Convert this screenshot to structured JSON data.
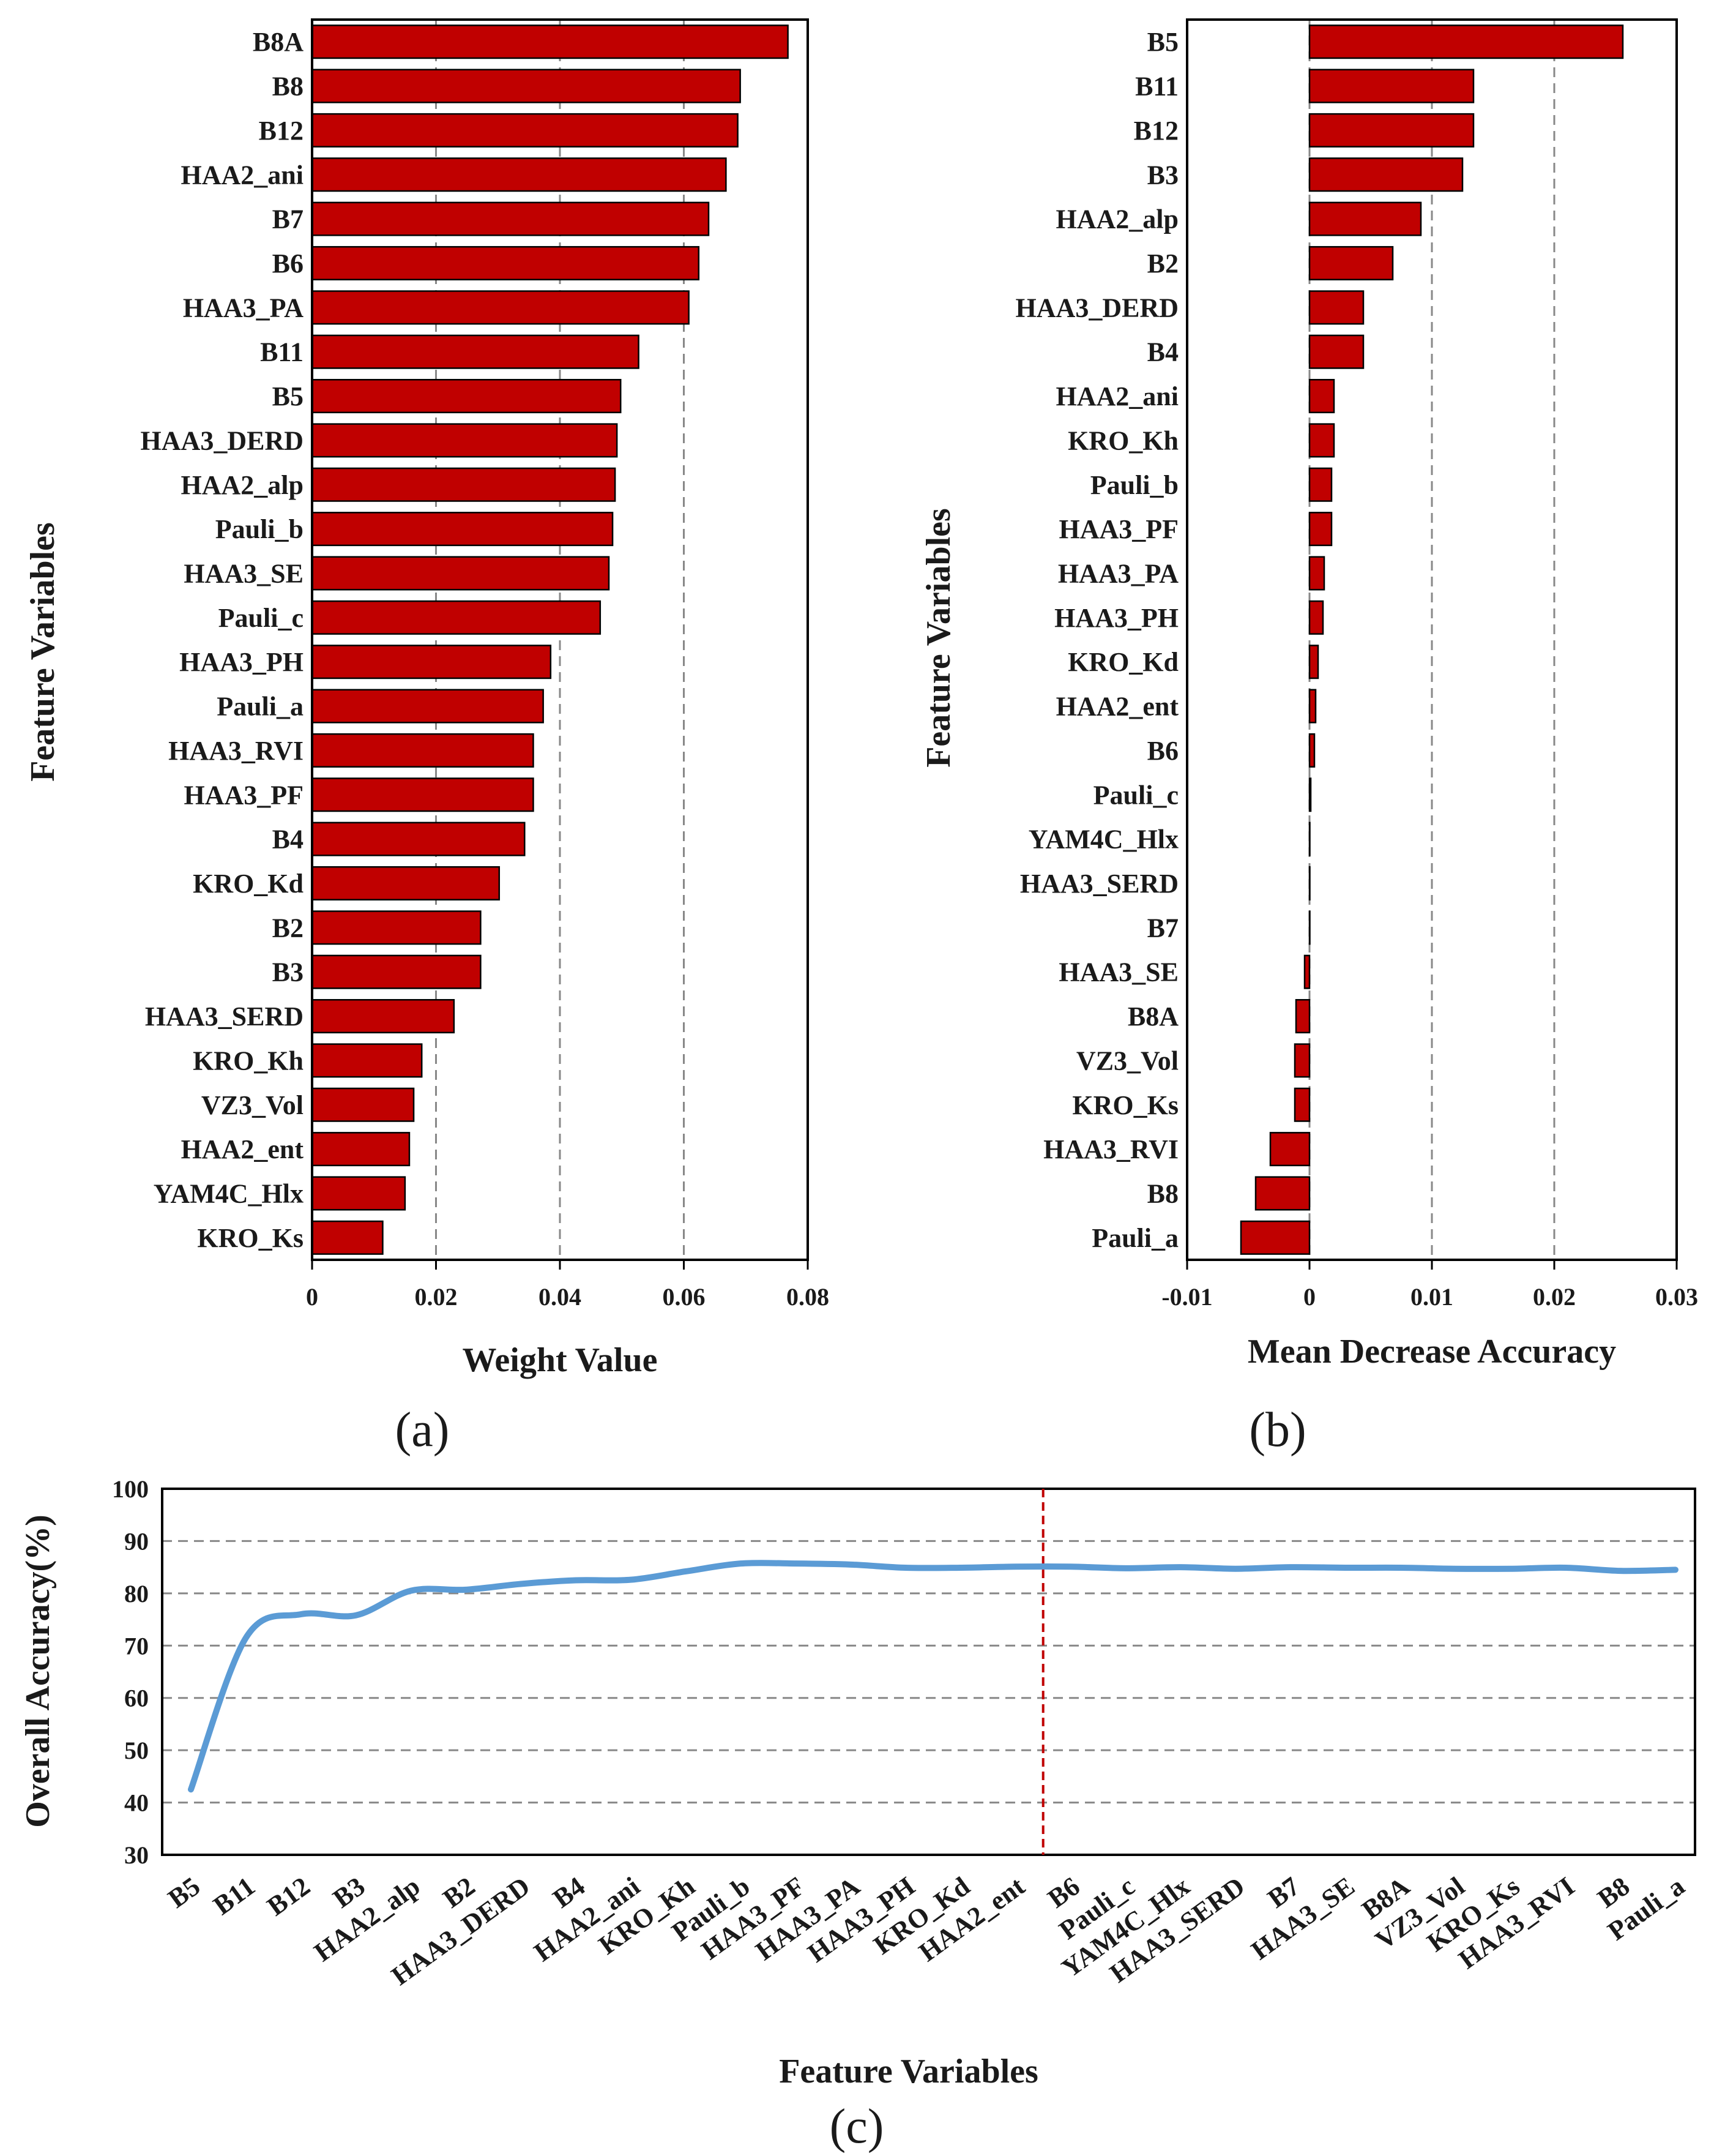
{
  "chart_data": [
    {
      "panel_label": "(a)",
      "type": "bar",
      "orientation": "horizontal",
      "xlabel": "Weight Value",
      "ylabel": "Feature Variables",
      "xlim": [
        0,
        0.08
      ],
      "xticks": [
        "0",
        "0.02",
        "0.04",
        "0.06",
        "0.08"
      ],
      "grid": "vertical dashed",
      "bar_color": "#c00000",
      "categories": [
        "B8A",
        "B8",
        "B12",
        "HAA2_ani",
        "B7",
        "B6",
        "HAA3_PA",
        "B11",
        "B5",
        "HAA3_DERD",
        "HAA2_alp",
        "Pauli_b",
        "HAA3_SE",
        "Pauli_c",
        "HAA3_PH",
        "Pauli_a",
        "HAA3_RVI",
        "HAA3_PF",
        "B4",
        "KRO_Kd",
        "B2",
        "B3",
        "HAA3_SERD",
        "KRO_Kh",
        "VZ3_Vol",
        "HAA2_ent",
        "YAM4C_Hlx",
        "KRO_Ks"
      ],
      "values": [
        0.0768,
        0.0691,
        0.0687,
        0.0668,
        0.064,
        0.0624,
        0.0608,
        0.0527,
        0.0498,
        0.0492,
        0.0489,
        0.0485,
        0.0479,
        0.0465,
        0.0385,
        0.0373,
        0.0357,
        0.0357,
        0.0343,
        0.0302,
        0.0272,
        0.0272,
        0.0229,
        0.0177,
        0.0164,
        0.0157,
        0.015,
        0.0114
      ]
    },
    {
      "panel_label": "(b)",
      "type": "bar",
      "orientation": "horizontal",
      "xlabel": "Mean Decrease Accuracy",
      "ylabel": "Feature Variables",
      "xlim": [
        -0.01,
        0.03
      ],
      "xticks": [
        "-0.01",
        "0",
        "0.01",
        "0.02",
        "0.03"
      ],
      "grid": "vertical dashed",
      "bar_color": "#c00000",
      "categories": [
        "B5",
        "B11",
        "B12",
        "B3",
        "HAA2_alp",
        "B2",
        "HAA3_DERD",
        "B4",
        "HAA2_ani",
        "KRO_Kh",
        "Pauli_b",
        "HAA3_PF",
        "HAA3_PA",
        "HAA3_PH",
        "KRO_Kd",
        "HAA2_ent",
        "B6",
        "Pauli_c",
        "YAM4C_Hlx",
        "HAA3_SERD",
        "B7",
        "HAA3_SE",
        "B8A",
        "VZ3_Vol",
        "KRO_Ks",
        "HAA3_RVI",
        "B8",
        "Pauli_a"
      ],
      "values": [
        0.0256,
        0.0134,
        0.0134,
        0.0125,
        0.0091,
        0.0068,
        0.0044,
        0.0044,
        0.002,
        0.002,
        0.0018,
        0.0018,
        0.0012,
        0.0011,
        0.0007,
        0.0005,
        0.0004,
        0.0001,
        0.0,
        0.0,
        0.0,
        -0.0004,
        -0.0011,
        -0.0012,
        -0.0012,
        -0.0032,
        -0.0044,
        -0.0056
      ]
    },
    {
      "panel_label": "(c)",
      "type": "line",
      "xlabel": "Feature Variables",
      "ylabel": "Overall Accuracy(%)",
      "ylim": [
        30,
        100
      ],
      "yticks": [
        "30",
        "40",
        "50",
        "60",
        "70",
        "80",
        "90",
        "100"
      ],
      "grid": "horizontal dashed",
      "line_color": "#5b9bd5",
      "marker_line": {
        "after_category": "HAA2_ent",
        "color": "#c00000"
      },
      "categories": [
        "B5",
        "B11",
        "B12",
        "B3",
        "HAA2_alp",
        "B2",
        "HAA3_DERD",
        "B4",
        "HAA2_ani",
        "KRO_Kh",
        "Pauli_b",
        "HAA3_PF",
        "HAA3_PA",
        "HAA3_PH",
        "KRO_Kd",
        "HAA2_ent",
        "B6",
        "Pauli_c",
        "YAM4C_Hlx",
        "HAA3_SERD",
        "B7",
        "HAA3_SE",
        "B8A",
        "VZ3_Vol",
        "KRO_Ks",
        "HAA3_RVI",
        "B8",
        "Pauli_a"
      ],
      "values": [
        42.5,
        71.5,
        76.0,
        75.8,
        80.5,
        80.7,
        81.8,
        82.5,
        82.6,
        84.2,
        85.7,
        85.7,
        85.5,
        84.9,
        84.9,
        85.1,
        85.1,
        84.8,
        85.0,
        84.7,
        85.0,
        84.9,
        84.9,
        84.7,
        84.7,
        84.9,
        84.3,
        84.5
      ]
    }
  ]
}
